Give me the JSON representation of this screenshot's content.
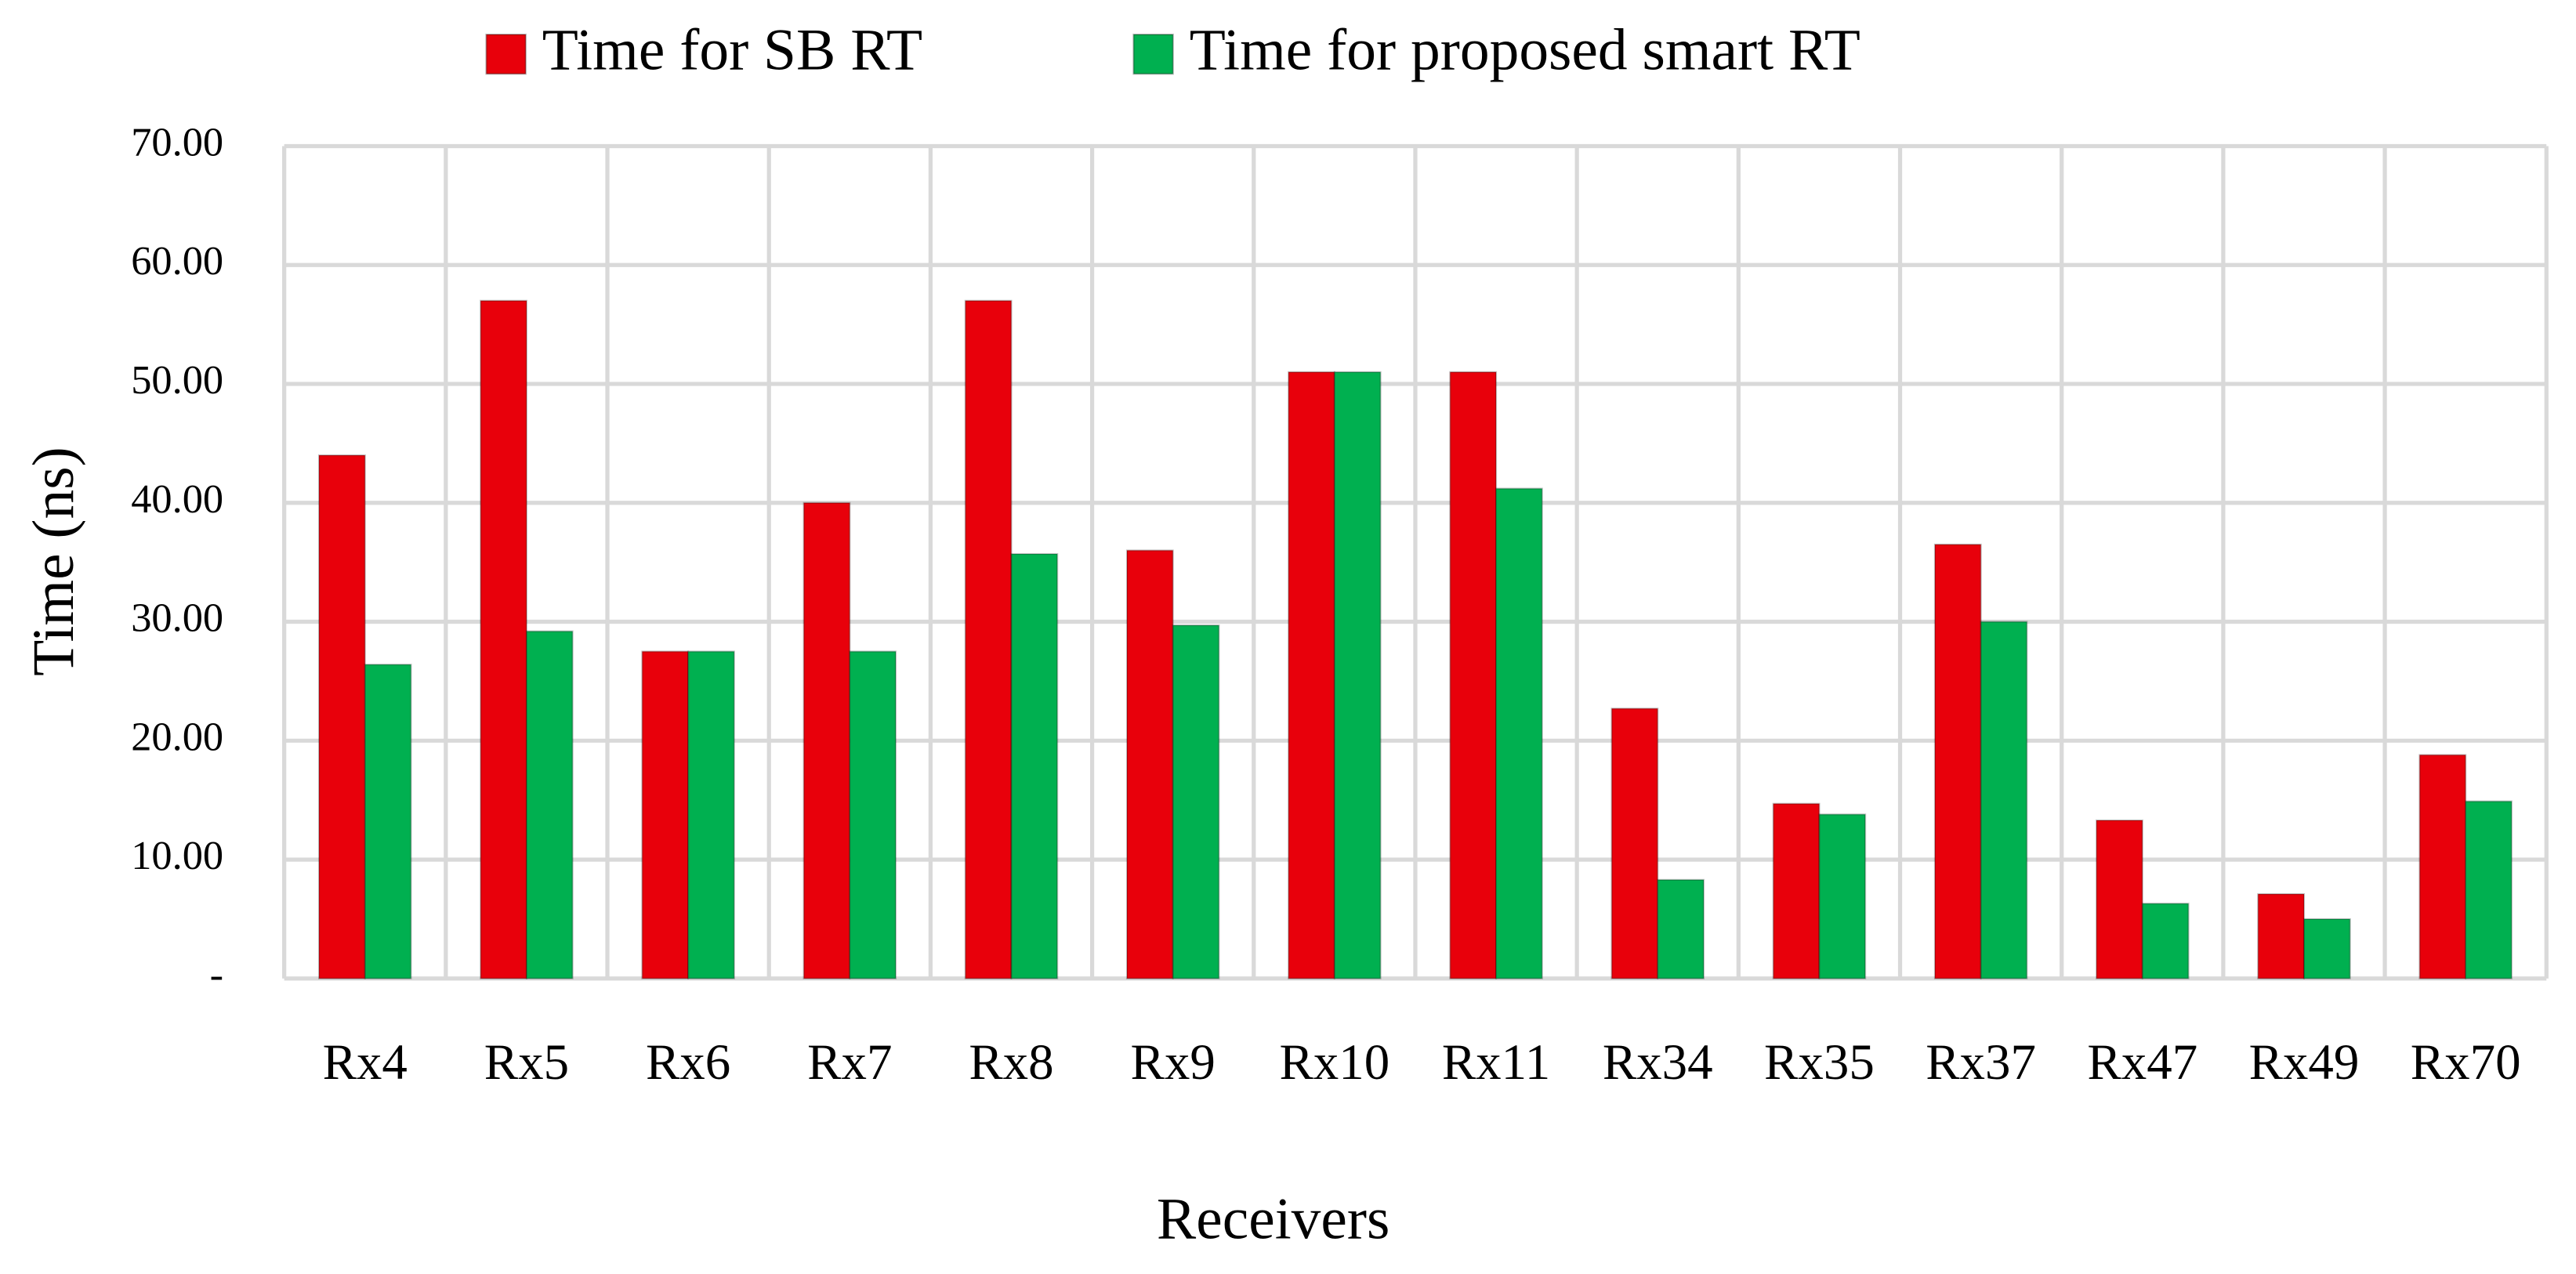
{
  "chart_data": {
    "type": "bar",
    "x_label": "Receivers",
    "y_label": "Time (ns)",
    "categories": [
      "Rx4",
      "Rx5",
      "Rx6",
      "Rx7",
      "Rx8",
      "Rx9",
      "Rx10",
      "Rx11",
      "Rx34",
      "Rx35",
      "Rx37",
      "Rx47",
      "Rx49",
      "Rx70"
    ],
    "series": [
      {
        "name": "Time for SB RT",
        "color": "#e8000b",
        "values": [
          44,
          57,
          27.5,
          40,
          57,
          36,
          51,
          51,
          22.7,
          14.7,
          36.5,
          13.3,
          7.1,
          18.8
        ]
      },
      {
        "name": "Time for proposed smart RT",
        "color": "#00b050",
        "values": [
          26.4,
          29.2,
          27.5,
          27.5,
          35.7,
          29.7,
          51,
          41.2,
          8.3,
          13.8,
          30,
          6.3,
          5,
          14.9
        ]
      }
    ],
    "ylim": [
      0,
      70
    ],
    "yticks": [
      {
        "value": 0,
        "label": "-"
      },
      {
        "value": 10,
        "label": "10.00"
      },
      {
        "value": 20,
        "label": "20.00"
      },
      {
        "value": 30,
        "label": "30.00"
      },
      {
        "value": 40,
        "label": "40.00"
      },
      {
        "value": 50,
        "label": "50.00"
      },
      {
        "value": 60,
        "label": "60.00"
      },
      {
        "value": 70,
        "label": "70.00"
      }
    ],
    "grid": true,
    "legend": "top"
  }
}
